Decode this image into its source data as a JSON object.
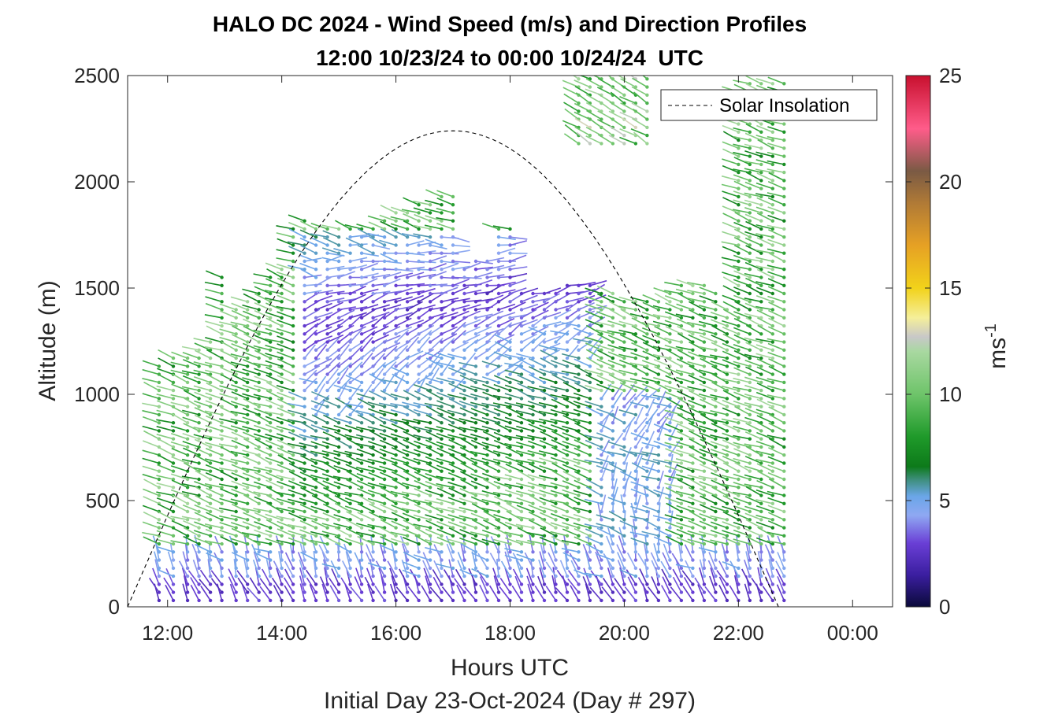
{
  "chart_data": {
    "type": "scatter",
    "title": "HALO DC 2024 - Wind Speed (m/s) and Direction Profiles",
    "subtitle": "12:00 10/23/24 to 00:00 10/24/24  UTC",
    "xlabel": "Hours UTC",
    "xlabel2": "Initial Day 23-Oct-2024 (Day # 297)",
    "ylabel": "Altitude (m)",
    "colorbar_label": "ms",
    "colorbar_label_exp": "-1",
    "xlim": [
      11.3,
      24.7
    ],
    "ylim": [
      0,
      2500
    ],
    "x_ticks": [
      12,
      14,
      16,
      18,
      20,
      22,
      24
    ],
    "x_tick_labels": [
      "12:00",
      "14:00",
      "16:00",
      "18:00",
      "20:00",
      "22:00",
      "00:00"
    ],
    "y_ticks": [
      0,
      500,
      1000,
      1500,
      2000,
      2500
    ],
    "y_tick_labels": [
      "0",
      "500",
      "1000",
      "1500",
      "2000",
      "2500"
    ],
    "colorbar_ticks": [
      0,
      5,
      10,
      15,
      20,
      25
    ],
    "colorbar_tick_labels": [
      "0",
      "5",
      "10",
      "15",
      "20",
      "25"
    ],
    "colorbar_range": [
      0,
      25
    ],
    "colorbar_stops": [
      {
        "v": 0,
        "c": "#0a0a3a"
      },
      {
        "v": 1.5,
        "c": "#3b1ea0"
      },
      {
        "v": 3,
        "c": "#6a3fd6"
      },
      {
        "v": 4.3,
        "c": "#8fa8f2"
      },
      {
        "v": 5.2,
        "c": "#6aa6e8"
      },
      {
        "v": 6,
        "c": "#3d8e7a"
      },
      {
        "v": 6.6,
        "c": "#0d7a1a"
      },
      {
        "v": 8,
        "c": "#1f9a2a"
      },
      {
        "v": 10,
        "c": "#6ec46a"
      },
      {
        "v": 12,
        "c": "#a8d8a0"
      },
      {
        "v": 12.7,
        "c": "#c8c8c8"
      },
      {
        "v": 13.6,
        "c": "#f5ef9a"
      },
      {
        "v": 15,
        "c": "#f2d21a"
      },
      {
        "v": 17,
        "c": "#e6a124"
      },
      {
        "v": 19,
        "c": "#b07a36"
      },
      {
        "v": 20.5,
        "c": "#7a5a44"
      },
      {
        "v": 22.5,
        "c": "#ff5c8a"
      },
      {
        "v": 25,
        "c": "#c8102e"
      }
    ],
    "legend": {
      "entries": [
        "Solar Insolation"
      ],
      "location": "top-right"
    },
    "insolation": {
      "sunrise": 11.3,
      "sunset": 22.7,
      "peak_altitude": 2240
    },
    "profiles": [
      {
        "t": 11.85,
        "top": 1140
      },
      {
        "t": 12.1,
        "top": 1180
      },
      {
        "t": 12.35,
        "top": 1200
      },
      {
        "t": 12.55,
        "top": 1230
      },
      {
        "t": 12.75,
        "top": 1260
      },
      {
        "t": 12.95,
        "top": 1570
      },
      {
        "t": 13.2,
        "top": 1420
      },
      {
        "t": 13.4,
        "top": 1450
      },
      {
        "t": 13.6,
        "top": 1500
      },
      {
        "t": 13.8,
        "top": 1550
      },
      {
        "t": 14.0,
        "top": 1620
      },
      {
        "t": 14.2,
        "top": 1800
      },
      {
        "t": 14.4,
        "top": 1840
      },
      {
        "t": 14.6,
        "top": 1790
      },
      {
        "t": 14.8,
        "top": 1790
      },
      {
        "t": 15.0,
        "top": 1790
      },
      {
        "t": 15.2,
        "top": 1790
      },
      {
        "t": 15.4,
        "top": 1800
      },
      {
        "t": 15.6,
        "top": 1800
      },
      {
        "t": 15.8,
        "top": 1840
      },
      {
        "t": 16.0,
        "top": 1870
      },
      {
        "t": 16.2,
        "top": 1880
      },
      {
        "t": 16.4,
        "top": 1900
      },
      {
        "t": 16.6,
        "top": 1920
      },
      {
        "t": 16.8,
        "top": 1960
      },
      {
        "t": 17.0,
        "top": 1950
      },
      {
        "t": 17.2,
        "top": 1620
      },
      {
        "t": 17.4,
        "top": 1650
      },
      {
        "t": 17.6,
        "top": 1660
      },
      {
        "t": 17.8,
        "top": 1780
      },
      {
        "t": 18.0,
        "top": 1780
      },
      {
        "t": 18.2,
        "top": 1500
      },
      {
        "t": 18.4,
        "top": 1480
      },
      {
        "t": 18.6,
        "top": 1480
      },
      {
        "t": 18.8,
        "top": 1500
      },
      {
        "t": 19.0,
        "top": 1530
      },
      {
        "t": 19.2,
        "top": 1530
      },
      {
        "t": 19.4,
        "top": 1530
      },
      {
        "t": 19.6,
        "top": 1500
      },
      {
        "t": 19.8,
        "top": 1500
      },
      {
        "t": 20.0,
        "top": 1470
      },
      {
        "t": 20.2,
        "top": 1450
      },
      {
        "t": 20.4,
        "top": 1440
      },
      {
        "t": 20.6,
        "top": 1440
      },
      {
        "t": 20.8,
        "top": 1510
      },
      {
        "t": 21.0,
        "top": 1520
      },
      {
        "t": 21.2,
        "top": 1520
      },
      {
        "t": 21.4,
        "top": 1540
      },
      {
        "t": 21.6,
        "top": 1500
      },
      {
        "t": 21.8,
        "top": 1400
      },
      {
        "t": 22.0,
        "top": 2450
      },
      {
        "t": 22.2,
        "top": 2480
      },
      {
        "t": 22.4,
        "top": 2490
      },
      {
        "t": 22.6,
        "top": 2490
      },
      {
        "t": 22.8,
        "top": 2490
      }
    ],
    "upper_layer": {
      "t_start": 19.2,
      "t_end": 20.5,
      "bottom": 2180,
      "top": 2500
    }
  }
}
